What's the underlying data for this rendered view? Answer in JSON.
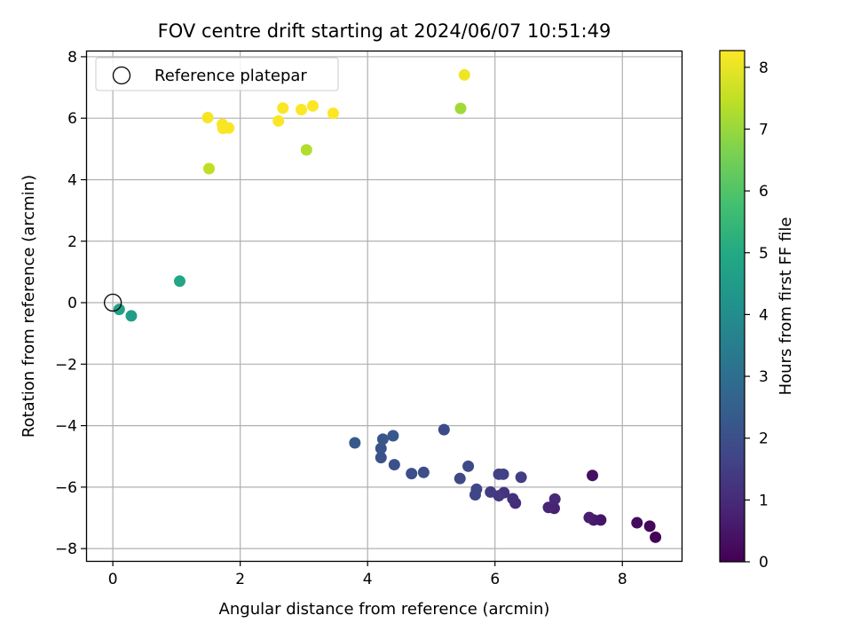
{
  "chart_data": {
    "type": "scatter",
    "title": "FOV centre drift starting at 2024/06/07 10:51:49",
    "xlabel": "Angular distance from reference (arcmin)",
    "ylabel": "Rotation from reference (arcmin)",
    "xlim": [
      -0.42,
      8.93
    ],
    "ylim": [
      -8.4,
      8.2
    ],
    "xticks": [
      0,
      2,
      4,
      6,
      8
    ],
    "xtick_labels": [
      "0",
      "2",
      "4",
      "6",
      "8"
    ],
    "yticks": [
      -8,
      -6,
      -4,
      -2,
      0,
      2,
      4,
      6,
      8
    ],
    "ytick_labels": [
      "−8",
      "−6",
      "−4",
      "−2",
      "0",
      "2",
      "4",
      "6",
      "8"
    ],
    "grid": true,
    "legend": {
      "entries": [
        "Reference platepar"
      ],
      "placement": "upper-left"
    },
    "colorbar": {
      "label": "Hours from first FF file",
      "range": [
        0,
        8.27
      ],
      "ticks": [
        0,
        1,
        2,
        3,
        4,
        5,
        6,
        7,
        8
      ],
      "tick_labels": [
        "0",
        "1",
        "2",
        "3",
        "4",
        "5",
        "6",
        "7",
        "8"
      ],
      "colormap": "viridis"
    },
    "reference_point": {
      "x": 0,
      "y": 0,
      "label": "Reference platepar"
    },
    "points": [
      {
        "x": 8.52,
        "y": -7.63,
        "c": 0.05
      },
      {
        "x": 8.43,
        "y": -7.27,
        "c": 0.15
      },
      {
        "x": 8.23,
        "y": -7.16,
        "c": 0.25
      },
      {
        "x": 7.53,
        "y": -5.62,
        "c": 0.35
      },
      {
        "x": 7.66,
        "y": -7.07,
        "c": 0.45
      },
      {
        "x": 7.55,
        "y": -7.07,
        "c": 0.55
      },
      {
        "x": 7.48,
        "y": -6.99,
        "c": 0.65
      },
      {
        "x": 6.93,
        "y": -6.69,
        "c": 0.75
      },
      {
        "x": 6.84,
        "y": -6.66,
        "c": 0.85
      },
      {
        "x": 6.94,
        "y": -6.39,
        "c": 0.95
      },
      {
        "x": 6.32,
        "y": -6.52,
        "c": 1.05
      },
      {
        "x": 6.28,
        "y": -6.38,
        "c": 1.15
      },
      {
        "x": 6.14,
        "y": -6.18,
        "c": 1.25
      },
      {
        "x": 6.06,
        "y": -6.28,
        "c": 1.35
      },
      {
        "x": 5.93,
        "y": -6.16,
        "c": 1.45
      },
      {
        "x": 6.41,
        "y": -5.68,
        "c": 1.5
      },
      {
        "x": 6.13,
        "y": -5.58,
        "c": 1.55
      },
      {
        "x": 6.06,
        "y": -5.58,
        "c": 1.6
      },
      {
        "x": 5.69,
        "y": -6.25,
        "c": 1.7
      },
      {
        "x": 5.71,
        "y": -6.07,
        "c": 1.75
      },
      {
        "x": 5.45,
        "y": -5.72,
        "c": 1.8
      },
      {
        "x": 5.58,
        "y": -5.32,
        "c": 1.85
      },
      {
        "x": 5.2,
        "y": -4.13,
        "c": 1.9
      },
      {
        "x": 4.88,
        "y": -5.52,
        "c": 1.95
      },
      {
        "x": 4.69,
        "y": -5.56,
        "c": 2.0
      },
      {
        "x": 4.42,
        "y": -5.27,
        "c": 2.05
      },
      {
        "x": 4.21,
        "y": -5.04,
        "c": 2.1
      },
      {
        "x": 4.21,
        "y": -4.74,
        "c": 2.15
      },
      {
        "x": 4.24,
        "y": -4.44,
        "c": 2.2
      },
      {
        "x": 4.4,
        "y": -4.33,
        "c": 2.25
      },
      {
        "x": 3.8,
        "y": -4.56,
        "c": 2.3
      },
      {
        "x": 0.29,
        "y": -0.43,
        "c": 4.6
      },
      {
        "x": 0.1,
        "y": -0.22,
        "c": 4.7
      },
      {
        "x": 1.05,
        "y": 0.7,
        "c": 4.9
      },
      {
        "x": 5.46,
        "y": 6.32,
        "c": 7.1
      },
      {
        "x": 3.04,
        "y": 4.97,
        "c": 7.3
      },
      {
        "x": 1.51,
        "y": 4.36,
        "c": 7.45
      },
      {
        "x": 5.52,
        "y": 7.41,
        "c": 8.1
      },
      {
        "x": 1.49,
        "y": 6.02,
        "c": 8.15
      },
      {
        "x": 1.72,
        "y": 5.8,
        "c": 8.2
      },
      {
        "x": 1.73,
        "y": 5.67,
        "c": 8.2
      },
      {
        "x": 1.82,
        "y": 5.68,
        "c": 8.2
      },
      {
        "x": 2.6,
        "y": 5.91,
        "c": 8.22
      },
      {
        "x": 2.67,
        "y": 6.33,
        "c": 8.22
      },
      {
        "x": 2.96,
        "y": 6.28,
        "c": 8.24
      },
      {
        "x": 3.14,
        "y": 6.4,
        "c": 8.25
      },
      {
        "x": 3.46,
        "y": 6.16,
        "c": 8.27
      }
    ]
  }
}
